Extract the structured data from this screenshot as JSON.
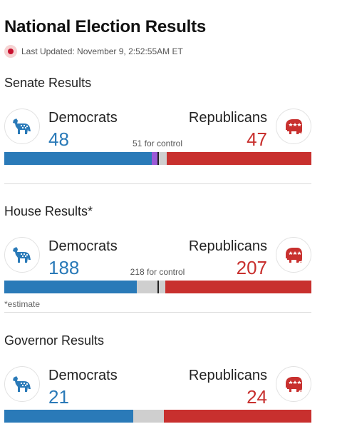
{
  "page": {
    "title": "National Election Results",
    "last_updated": "Last Updated: November 9, 2:52:55AM ET"
  },
  "colors": {
    "democrat": "#2a7ab8",
    "republican": "#c8302e",
    "independent": "#9b59d6",
    "undecided": "#cfcfcf",
    "live": "#c8102e"
  },
  "senate": {
    "title": "Senate Results",
    "dem_label": "Democrats",
    "rep_label": "Republicans",
    "dem_seats": "48",
    "rep_seats": "47",
    "control_text": "51 for control",
    "bar": {
      "total": 100,
      "dem": 48,
      "ind": 2,
      "undecided": 3,
      "rep": 47,
      "control": 51
    }
  },
  "house": {
    "title": "House Results*",
    "dem_label": "Democrats",
    "rep_label": "Republicans",
    "dem_seats": "188",
    "rep_seats": "207",
    "control_text": "218 for control",
    "footnote": "*estimate",
    "bar": {
      "total": 435,
      "dem": 188,
      "ind": 0,
      "undecided": 40,
      "rep": 207,
      "control": 218
    }
  },
  "governor": {
    "title": "Governor Results",
    "dem_label": "Democrats",
    "rep_label": "Republicans",
    "dem_seats": "21",
    "rep_seats": "24",
    "bar": {
      "total": 50,
      "dem": 21,
      "ind": 0,
      "undecided": 5,
      "rep": 24
    }
  },
  "icons": {
    "democrat": "donkey-icon",
    "republican": "elephant-icon",
    "live": "live-dot-icon"
  }
}
